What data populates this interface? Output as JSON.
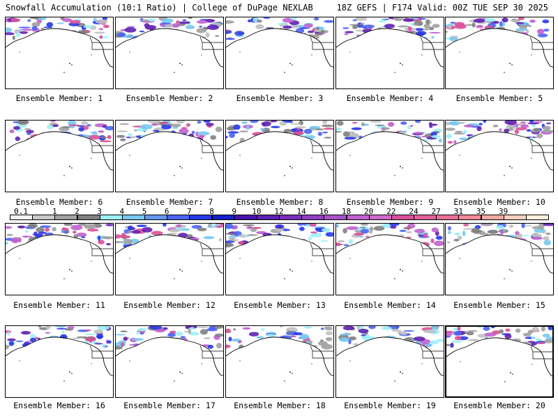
{
  "header": {
    "title_left": "Snowfall Accumulation (10:1 Ratio) | College of DuPage NEXLAB",
    "title_right": "18Z GEFS | F174 Valid: 00Z TUE SEP 30 2025"
  },
  "panels": [
    {
      "label": "Ensemble Member: 1"
    },
    {
      "label": "Ensemble Member: 2"
    },
    {
      "label": "Ensemble Member: 3"
    },
    {
      "label": "Ensemble Member: 4"
    },
    {
      "label": "Ensemble Member: 5"
    },
    {
      "label": "Ensemble Member: 6"
    },
    {
      "label": "Ensemble Member: 7"
    },
    {
      "label": "Ensemble Member: 8"
    },
    {
      "label": "Ensemble Member: 9"
    },
    {
      "label": "Ensemble Member: 10"
    },
    {
      "label": "Ensemble Member: 11"
    },
    {
      "label": "Ensemble Member: 12"
    },
    {
      "label": "Ensemble Member: 13"
    },
    {
      "label": "Ensemble Member: 14"
    },
    {
      "label": "Ensemble Member: 15"
    },
    {
      "label": "Ensemble Member: 16"
    },
    {
      "label": "Ensemble Member: 17"
    },
    {
      "label": "Ensemble Member: 18"
    },
    {
      "label": "Ensemble Member: 19"
    },
    {
      "label": "Ensemble Member: 20"
    }
  ],
  "colorbar": {
    "labels": [
      "0.1",
      "1",
      "2",
      "3",
      "4",
      "5",
      "6",
      "7",
      "8",
      "9",
      "10",
      "12",
      "14",
      "16",
      "18",
      "20",
      "22",
      "24",
      "27",
      "31",
      "35",
      "39"
    ],
    "colors": [
      "#f2f2f2",
      "#c8c8c8",
      "#a0a0a0",
      "#808080",
      "#9cf0f8",
      "#78c8f0",
      "#6496f0",
      "#4b64f0",
      "#2838e8",
      "#1420c8",
      "#4814a8",
      "#6020b0",
      "#7830b8",
      "#9040c0",
      "#a850c8",
      "#c060d0",
      "#d068c8",
      "#d85098",
      "#e06098",
      "#e87098",
      "#f08898",
      "#f0a8a0",
      "#f8d0c0",
      "#fff0e0"
    ]
  }
}
